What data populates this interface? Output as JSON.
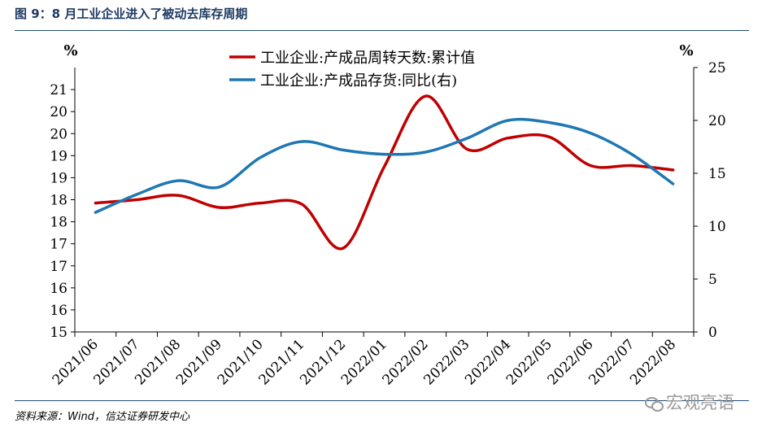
{
  "figure": {
    "title": "图 9：8 月工业企业进入了被动去库存周期",
    "source": "资料来源：Wind，信达证券研发中心",
    "watermark": "宏观亮语"
  },
  "chart_data": {
    "type": "line",
    "categories": [
      "2021/06",
      "2021/07",
      "2021/08",
      "2021/09",
      "2021/10",
      "2021/11",
      "2021/12",
      "2022/01",
      "2022/02",
      "2022/03",
      "2022/04",
      "2022/05",
      "2022/06",
      "2022/07",
      "2022/08"
    ],
    "left_axis": {
      "unit_label": "%",
      "range": [
        0,
        12
      ],
      "ticks": [
        {
          "value": 0,
          "label": "15"
        },
        {
          "value": 1,
          "label": "16"
        },
        {
          "value": 2,
          "label": "16"
        },
        {
          "value": 3,
          "label": "17"
        },
        {
          "value": 4,
          "label": "17"
        },
        {
          "value": 5,
          "label": "18"
        },
        {
          "value": 6,
          "label": "18"
        },
        {
          "value": 7,
          "label": "19"
        },
        {
          "value": 8,
          "label": "19"
        },
        {
          "value": 9,
          "label": "20"
        },
        {
          "value": 10,
          "label": "20"
        },
        {
          "value": 11,
          "label": "21"
        }
      ]
    },
    "right_axis": {
      "unit_label": "%",
      "range": [
        0,
        25
      ],
      "ticks": [
        {
          "value": 0,
          "label": "0"
        },
        {
          "value": 5,
          "label": "5"
        },
        {
          "value": 10,
          "label": "10"
        },
        {
          "value": 15,
          "label": "15"
        },
        {
          "value": 20,
          "label": "20"
        },
        {
          "value": 25,
          "label": "25"
        }
      ]
    },
    "series": [
      {
        "name": "工业企业:产成品周转天数:累计值",
        "axis": "left",
        "color": "#c00000",
        "values": [
          5.85,
          6.0,
          6.2,
          5.65,
          5.85,
          5.8,
          3.8,
          7.5,
          10.7,
          8.3,
          8.8,
          8.85,
          7.55,
          7.55,
          7.35
        ]
      },
      {
        "name": "工业企业:产成品存货:同比(右)",
        "axis": "right",
        "color": "#1f77b4",
        "values": [
          11.3,
          13.0,
          14.3,
          13.7,
          16.5,
          18.0,
          17.2,
          16.8,
          17.0,
          18.3,
          20.0,
          19.8,
          18.8,
          16.8,
          14.0
        ]
      }
    ],
    "legend_position": "top-center",
    "grid": false
  }
}
